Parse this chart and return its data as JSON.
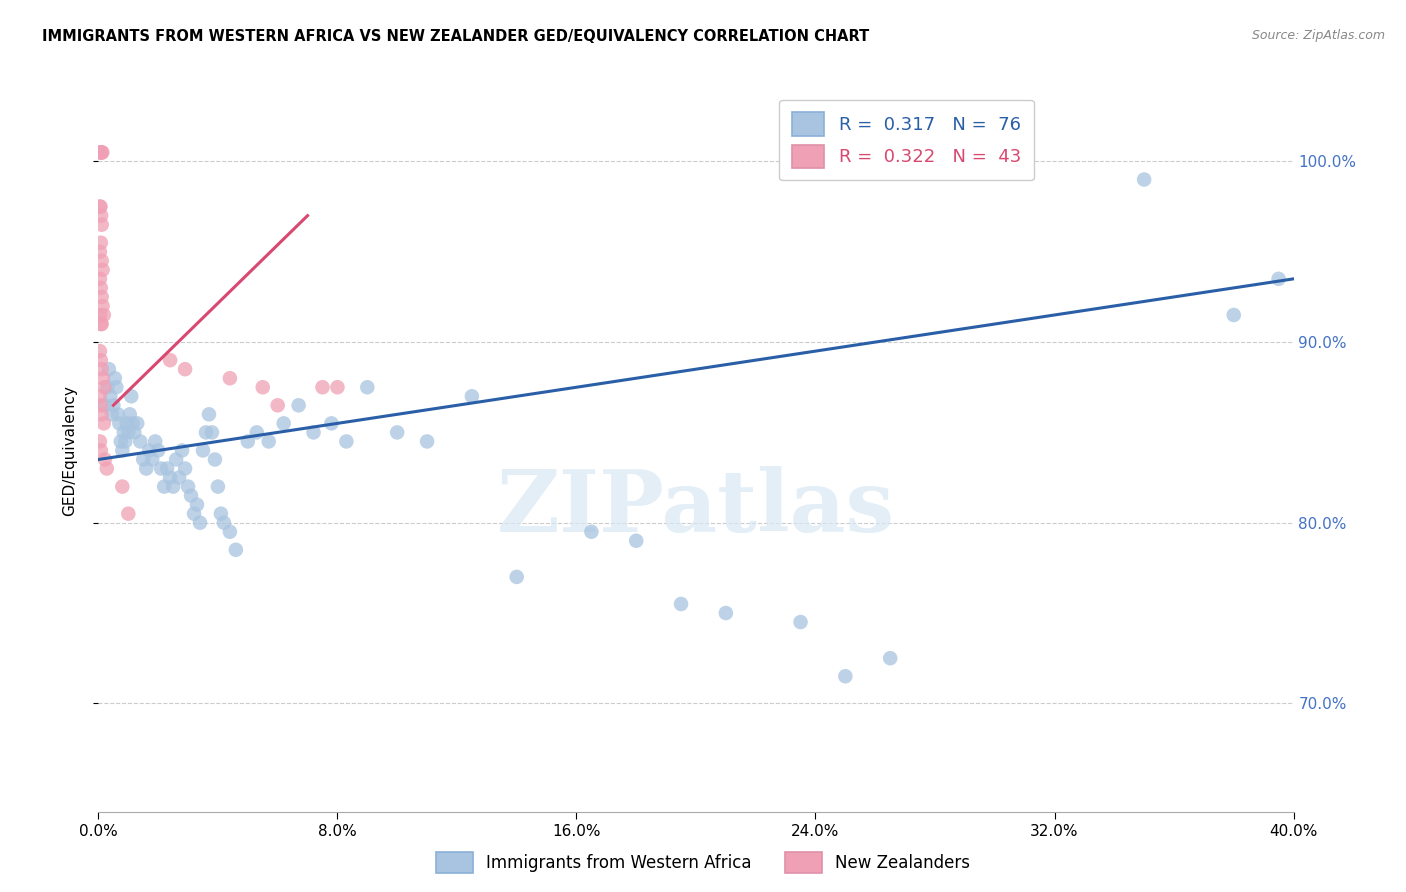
{
  "title": "IMMIGRANTS FROM WESTERN AFRICA VS NEW ZEALANDER GED/EQUIVALENCY CORRELATION CHART",
  "source": "Source: ZipAtlas.com",
  "ylabel": "GED/Equivalency",
  "xlim": [
    0.0,
    40.0
  ],
  "ylim": [
    64.0,
    104.0
  ],
  "yticks": [
    70.0,
    80.0,
    90.0,
    100.0
  ],
  "xticks": [
    0.0,
    8.0,
    16.0,
    24.0,
    32.0,
    40.0
  ],
  "blue_R": 0.317,
  "blue_N": 76,
  "pink_R": 0.322,
  "pink_N": 43,
  "blue_label": "Immigrants from Western Africa",
  "pink_label": "New Zealanders",
  "blue_color": "#a8c4e0",
  "pink_color": "#f0a0b4",
  "blue_line_color": "#2a5fa8",
  "pink_line_color": "#d84870",
  "watermark_text": "ZIPatlas",
  "blue_line_x0": 0.0,
  "blue_line_y0": 83.5,
  "blue_line_x1": 40.0,
  "blue_line_y1": 93.5,
  "pink_line_x0": 0.5,
  "pink_line_y0": 86.5,
  "pink_line_x1": 7.0,
  "pink_line_y1": 97.0,
  "blue_points_x": [
    0.2,
    0.3,
    0.35,
    0.4,
    0.45,
    0.5,
    0.55,
    0.6,
    0.65,
    0.7,
    0.75,
    0.8,
    0.85,
    0.9,
    0.95,
    1.0,
    1.05,
    1.1,
    1.15,
    1.2,
    1.3,
    1.4,
    1.5,
    1.6,
    1.7,
    1.8,
    1.9,
    2.0,
    2.1,
    2.2,
    2.3,
    2.4,
    2.5,
    2.6,
    2.7,
    2.8,
    2.9,
    3.0,
    3.1,
    3.2,
    3.3,
    3.4,
    3.5,
    3.6,
    3.7,
    3.8,
    3.9,
    4.0,
    4.1,
    4.2,
    4.4,
    4.6,
    5.0,
    5.3,
    5.7,
    6.2,
    6.7,
    7.2,
    7.8,
    8.3,
    9.0,
    10.0,
    11.0,
    12.5,
    14.0,
    16.5,
    18.0,
    19.5,
    21.0,
    23.5,
    25.0,
    26.5,
    29.5,
    35.0,
    38.0,
    39.5
  ],
  "blue_points_y": [
    86.5,
    87.5,
    88.5,
    87.0,
    86.0,
    86.5,
    88.0,
    87.5,
    86.0,
    85.5,
    84.5,
    84.0,
    85.0,
    84.5,
    85.5,
    85.0,
    86.0,
    87.0,
    85.5,
    85.0,
    85.5,
    84.5,
    83.5,
    83.0,
    84.0,
    83.5,
    84.5,
    84.0,
    83.0,
    82.0,
    83.0,
    82.5,
    82.0,
    83.5,
    82.5,
    84.0,
    83.0,
    82.0,
    81.5,
    80.5,
    81.0,
    80.0,
    84.0,
    85.0,
    86.0,
    85.0,
    83.5,
    82.0,
    80.5,
    80.0,
    79.5,
    78.5,
    84.5,
    85.0,
    84.5,
    85.5,
    86.5,
    85.0,
    85.5,
    84.5,
    87.5,
    85.0,
    84.5,
    87.0,
    77.0,
    79.5,
    79.0,
    75.5,
    75.0,
    74.5,
    71.5,
    72.5,
    100.5,
    99.0,
    91.5,
    93.5
  ],
  "pink_points_x": [
    0.05,
    0.07,
    0.09,
    0.11,
    0.13,
    0.05,
    0.07,
    0.09,
    0.11,
    0.05,
    0.08,
    0.11,
    0.14,
    0.05,
    0.08,
    0.11,
    0.14,
    0.18,
    0.05,
    0.08,
    0.11,
    0.05,
    0.08,
    0.11,
    0.15,
    0.2,
    0.05,
    0.08,
    0.11,
    0.18,
    0.05,
    0.08,
    0.22,
    0.28,
    0.8,
    1.0,
    2.4,
    2.9,
    4.4,
    5.5,
    6.0,
    7.5,
    8.0
  ],
  "pink_points_y": [
    100.5,
    100.5,
    100.5,
    100.5,
    100.5,
    97.5,
    97.5,
    97.0,
    96.5,
    95.0,
    95.5,
    94.5,
    94.0,
    93.5,
    93.0,
    92.5,
    92.0,
    91.5,
    91.5,
    91.0,
    91.0,
    89.5,
    89.0,
    88.5,
    88.0,
    87.5,
    87.0,
    86.5,
    86.0,
    85.5,
    84.5,
    84.0,
    83.5,
    83.0,
    82.0,
    80.5,
    89.0,
    88.5,
    88.0,
    87.5,
    86.5,
    87.5,
    87.5
  ]
}
